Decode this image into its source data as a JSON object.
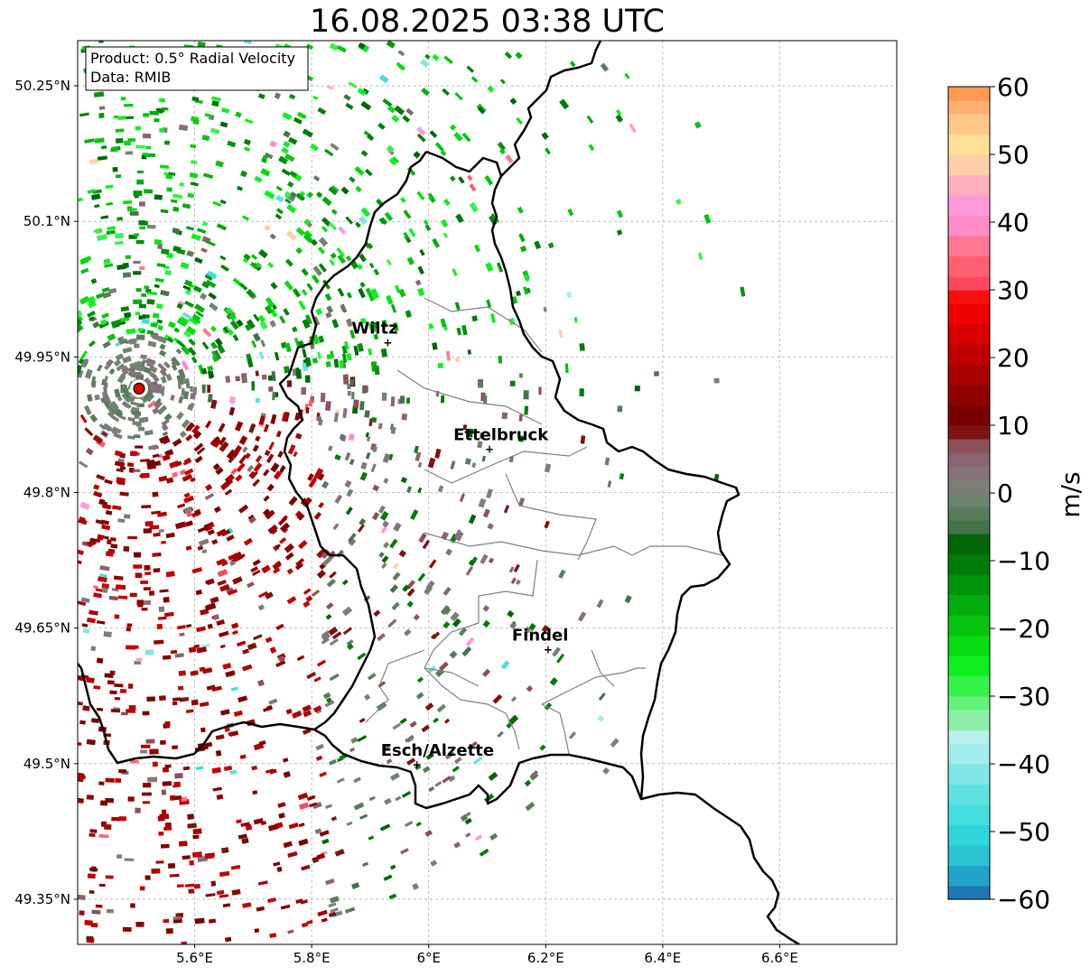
{
  "title": "16.08.2025 03:38 UTC",
  "info_box": {
    "product": "Product: 0.5° Radial Velocity",
    "data": "Data: RMIB"
  },
  "map": {
    "lon_range": [
      5.4,
      6.8
    ],
    "lat_range": [
      49.3,
      50.3
    ],
    "lon_ticks": [
      {
        "value": 5.6,
        "label": "5.6°E"
      },
      {
        "value": 5.8,
        "label": "5.8°E"
      },
      {
        "value": 6.0,
        "label": "6°E"
      },
      {
        "value": 6.2,
        "label": "6.2°E"
      },
      {
        "value": 6.4,
        "label": "6.4°E"
      },
      {
        "value": 6.6,
        "label": "6.6°E"
      }
    ],
    "lat_ticks": [
      {
        "value": 50.25,
        "label": "50.25°N"
      },
      {
        "value": 50.1,
        "label": "50.1°N"
      },
      {
        "value": 49.95,
        "label": "49.95°N"
      },
      {
        "value": 49.8,
        "label": "49.8°N"
      },
      {
        "value": 49.65,
        "label": "49.65°N"
      },
      {
        "value": 49.5,
        "label": "49.5°N"
      },
      {
        "value": 49.35,
        "label": "49.35°N"
      }
    ],
    "radar_site": {
      "lon": 5.505,
      "lat": 49.915
    },
    "cities": [
      {
        "name": "Wiltz",
        "lon": 5.93,
        "lat": 49.966
      },
      {
        "name": "Ettelbruck",
        "lon": 6.104,
        "lat": 49.848
      },
      {
        "name": "Findel",
        "lon": 6.204,
        "lat": 49.626
      },
      {
        "name": "Esch/Alzette",
        "lon": 5.98,
        "lat": 49.499
      }
    ],
    "grid": true
  },
  "colorbar": {
    "label": "m/s",
    "min": -60,
    "max": 60,
    "ticks": [
      {
        "value": 60,
        "label": "60"
      },
      {
        "value": 50,
        "label": "50"
      },
      {
        "value": 40,
        "label": "40"
      },
      {
        "value": 30,
        "label": "30"
      },
      {
        "value": 20,
        "label": "20"
      },
      {
        "value": 10,
        "label": "10"
      },
      {
        "value": 0,
        "label": "0"
      },
      {
        "value": -10,
        "label": "−10"
      },
      {
        "value": -20,
        "label": "−20"
      },
      {
        "value": -30,
        "label": "−30"
      },
      {
        "value": -40,
        "label": "−40"
      },
      {
        "value": -50,
        "label": "−50"
      },
      {
        "value": -60,
        "label": "−60"
      }
    ],
    "stops": [
      {
        "from": -60,
        "to": -58,
        "color": "#1f77b4"
      },
      {
        "from": -58,
        "to": -55,
        "color": "#24a3c9"
      },
      {
        "from": -55,
        "to": -52,
        "color": "#2ac4d2"
      },
      {
        "from": -52,
        "to": -49,
        "color": "#2ed6da"
      },
      {
        "from": -49,
        "to": -46,
        "color": "#44dede"
      },
      {
        "from": -46,
        "to": -43,
        "color": "#5ee2e2"
      },
      {
        "from": -43,
        "to": -40,
        "color": "#80e6e6"
      },
      {
        "from": -40,
        "to": -37,
        "color": "#a2ecec"
      },
      {
        "from": -37,
        "to": -35,
        "color": "#b8f0ee"
      },
      {
        "from": -35,
        "to": -32,
        "color": "#8ef0a6"
      },
      {
        "from": -32,
        "to": -30,
        "color": "#64f27a"
      },
      {
        "from": -30,
        "to": -27,
        "color": "#38f24c"
      },
      {
        "from": -27,
        "to": -24,
        "color": "#10f020"
      },
      {
        "from": -24,
        "to": -21,
        "color": "#08dc10"
      },
      {
        "from": -21,
        "to": -18,
        "color": "#06c410"
      },
      {
        "from": -18,
        "to": -15,
        "color": "#04ac0e"
      },
      {
        "from": -15,
        "to": -12,
        "color": "#00940a"
      },
      {
        "from": -12,
        "to": -9,
        "color": "#007c08"
      },
      {
        "from": -9,
        "to": -6,
        "color": "#006606"
      },
      {
        "from": -6,
        "to": -4,
        "color": "#44734a"
      },
      {
        "from": -4,
        "to": -2,
        "color": "#5a7c5c"
      },
      {
        "from": -2,
        "to": 0,
        "color": "#6e846e"
      },
      {
        "from": 0,
        "to": 2,
        "color": "#7e7e76"
      },
      {
        "from": 2,
        "to": 4,
        "color": "#86727a"
      },
      {
        "from": 4,
        "to": 6,
        "color": "#8a6470"
      },
      {
        "from": 6,
        "to": 8,
        "color": "#8c505a"
      },
      {
        "from": 8,
        "to": 10,
        "color": "#7c1414"
      },
      {
        "from": 10,
        "to": 13,
        "color": "#7a0000"
      },
      {
        "from": 13,
        "to": 16,
        "color": "#900000"
      },
      {
        "from": 16,
        "to": 19,
        "color": "#a80000"
      },
      {
        "from": 19,
        "to": 22,
        "color": "#c00000"
      },
      {
        "from": 22,
        "to": 25,
        "color": "#d80000"
      },
      {
        "from": 25,
        "to": 28,
        "color": "#f00000"
      },
      {
        "from": 28,
        "to": 30,
        "color": "#f81010"
      },
      {
        "from": 30,
        "to": 32,
        "color": "#ff4860"
      },
      {
        "from": 32,
        "to": 35,
        "color": "#ff6070"
      },
      {
        "from": 35,
        "to": 38,
        "color": "#ff7890"
      },
      {
        "from": 38,
        "to": 41,
        "color": "#ff8cc8"
      },
      {
        "from": 41,
        "to": 44,
        "color": "#ff9ad8"
      },
      {
        "from": 44,
        "to": 47,
        "color": "#ffb0c0"
      },
      {
        "from": 47,
        "to": 50,
        "color": "#ffd0a8"
      },
      {
        "from": 50,
        "to": 53,
        "color": "#ffe096"
      },
      {
        "from": 53,
        "to": 56,
        "color": "#ffc888"
      },
      {
        "from": 56,
        "to": 58,
        "color": "#ffb070"
      },
      {
        "from": 58,
        "to": 60,
        "color": "#ff9a50"
      }
    ]
  }
}
